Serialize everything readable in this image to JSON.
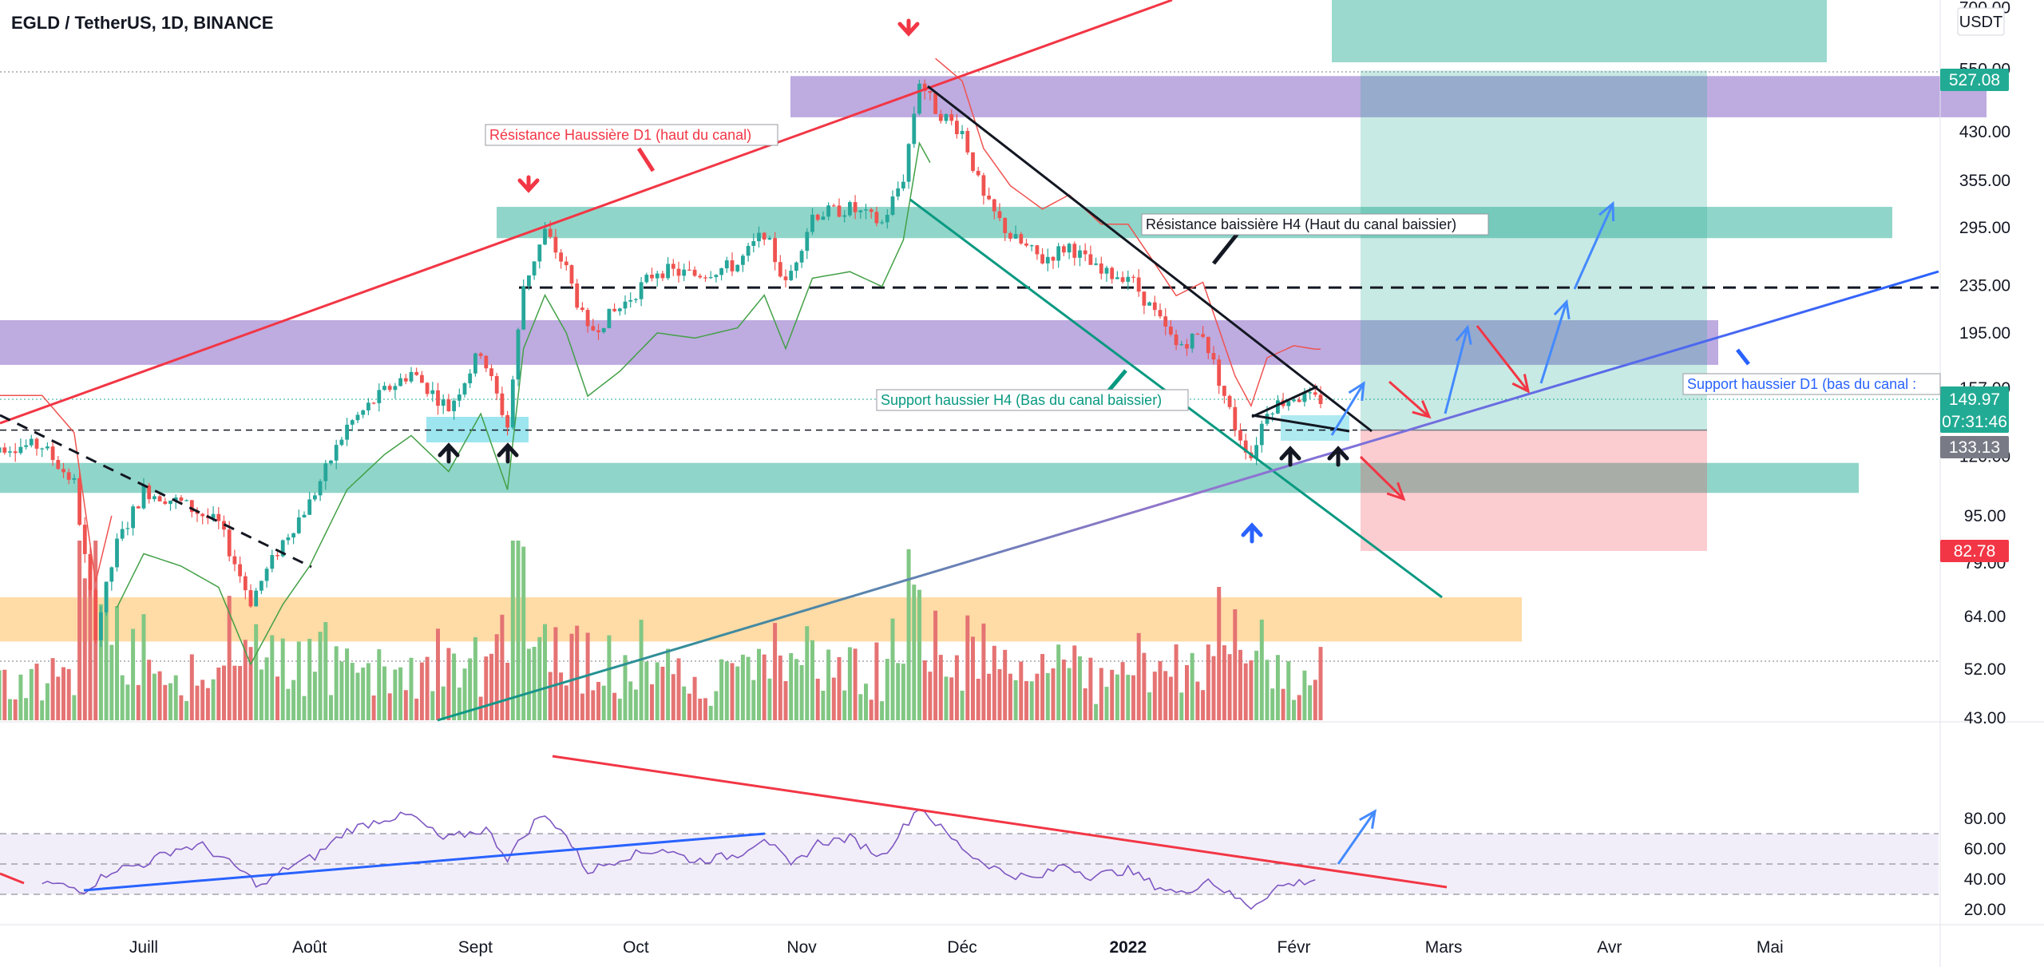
{
  "header": {
    "title": "EGLD / TetherUS, 1D, BINANCE",
    "currency": "USDT"
  },
  "chart_data": [
    {
      "type": "candlestick",
      "title": "EGLD / TetherUS, 1D, BINANCE",
      "scale": "log",
      "ylim": [
        43,
        700
      ],
      "y_ticks": [
        "700.00",
        "550.00",
        "430.00",
        "355.00",
        "295.00",
        "235.00",
        "195.00",
        "157.00",
        "120.00",
        "95.00",
        "79.00",
        "64.00",
        "52.00",
        "43.00"
      ],
      "y_tick_values": [
        700,
        550,
        430,
        355,
        295,
        235,
        195,
        157,
        120,
        95,
        79,
        64,
        52,
        43
      ],
      "x_ticks": [
        "Juill",
        "Août",
        "Sept",
        "Oct",
        "Nov",
        "Déc",
        "2022",
        "Févr",
        "Mars",
        "Avr",
        "Mai"
      ],
      "x_tick_dates": [
        "2021-07-01",
        "2021-08-01",
        "2021-09-01",
        "2021-10-01",
        "2021-11-01",
        "2021-12-01",
        "2022-01-01",
        "2022-02-01",
        "2022-03-01",
        "2022-04-01",
        "2022-05-01"
      ],
      "price_path": [
        {
          "date": "2021-06-12",
          "price": 125
        },
        {
          "date": "2021-06-18",
          "price": 108
        },
        {
          "date": "2021-06-22",
          "price": 60
        },
        {
          "date": "2021-06-26",
          "price": 85
        },
        {
          "date": "2021-07-01",
          "price": 105
        },
        {
          "date": "2021-07-08",
          "price": 100
        },
        {
          "date": "2021-07-15",
          "price": 92
        },
        {
          "date": "2021-07-21",
          "price": 68
        },
        {
          "date": "2021-07-27",
          "price": 86
        },
        {
          "date": "2021-08-01",
          "price": 100
        },
        {
          "date": "2021-08-08",
          "price": 135
        },
        {
          "date": "2021-08-15",
          "price": 155
        },
        {
          "date": "2021-08-20",
          "price": 167
        },
        {
          "date": "2021-08-27",
          "price": 145
        },
        {
          "date": "2021-09-02",
          "price": 182
        },
        {
          "date": "2021-09-07",
          "price": 135
        },
        {
          "date": "2021-09-10",
          "price": 235
        },
        {
          "date": "2021-09-14",
          "price": 290
        },
        {
          "date": "2021-09-18",
          "price": 250
        },
        {
          "date": "2021-09-22",
          "price": 195
        },
        {
          "date": "2021-09-28",
          "price": 215
        },
        {
          "date": "2021-10-05",
          "price": 250
        },
        {
          "date": "2021-10-12",
          "price": 245
        },
        {
          "date": "2021-10-20",
          "price": 255
        },
        {
          "date": "2021-10-25",
          "price": 290
        },
        {
          "date": "2021-10-29",
          "price": 235
        },
        {
          "date": "2021-11-03",
          "price": 310
        },
        {
          "date": "2021-11-10",
          "price": 318
        },
        {
          "date": "2021-11-16",
          "price": 300
        },
        {
          "date": "2021-11-20",
          "price": 360
        },
        {
          "date": "2021-11-23",
          "price": 527
        },
        {
          "date": "2021-11-26",
          "price": 470
        },
        {
          "date": "2021-12-01",
          "price": 430
        },
        {
          "date": "2021-12-05",
          "price": 330
        },
        {
          "date": "2021-12-10",
          "price": 285
        },
        {
          "date": "2021-12-16",
          "price": 260
        },
        {
          "date": "2021-12-21",
          "price": 275
        },
        {
          "date": "2021-12-27",
          "price": 245
        },
        {
          "date": "2022-01-01",
          "price": 245
        },
        {
          "date": "2022-01-06",
          "price": 210
        },
        {
          "date": "2022-01-10",
          "price": 185
        },
        {
          "date": "2022-01-15",
          "price": 195
        },
        {
          "date": "2022-01-21",
          "price": 135
        },
        {
          "date": "2022-01-24",
          "price": 120
        },
        {
          "date": "2022-01-27",
          "price": 145
        },
        {
          "date": "2022-02-01",
          "price": 152
        },
        {
          "date": "2022-02-05",
          "price": 149.97
        }
      ],
      "price_labels": [
        {
          "text": "527.08",
          "price": 527.08,
          "color": "#22ab94"
        },
        {
          "text": "149.97",
          "price": 149.97,
          "color": "#22ab94"
        },
        {
          "text": "07:31:46",
          "color": "#22ab94"
        },
        {
          "text": "133.13",
          "price": 133.13,
          "color": "#787b86"
        },
        {
          "text": "82.78",
          "price": 82.78,
          "color": "#f23645"
        }
      ],
      "annotations": [
        {
          "text": "Résistance Haussière D1 (haut du canal)",
          "color": "#f23645"
        },
        {
          "text": "Résistance baissière H4 (Haut du canal baissier)",
          "color": "#131722"
        },
        {
          "text": "Support haussier H4 (Bas du canal baissier)",
          "color": "#089981"
        },
        {
          "text": "Support haussier D1 (bas du canal :",
          "color": "#2962ff"
        }
      ],
      "zones": [
        {
          "name": "purple-resistance-high",
          "color": "#7e57c2",
          "low": 455,
          "high": 535
        },
        {
          "name": "purple-zone-mid",
          "color": "#7e57c2",
          "low": 172,
          "high": 205
        },
        {
          "name": "teal-zone-upper",
          "color": "#22ab94",
          "low": 283,
          "high": 320
        },
        {
          "name": "teal-zone-lower",
          "color": "#22ab94",
          "low": 104,
          "high": 117
        },
        {
          "name": "orange-zone",
          "color": "#ffb74d",
          "low": 58,
          "high": 69
        }
      ],
      "levels": [
        {
          "price": 233,
          "style": "dashed",
          "color": "#131722"
        },
        {
          "price": 133.13,
          "style": "dashed",
          "color": "#131722"
        }
      ],
      "position": {
        "entry": 133.13,
        "target": 550,
        "stop": 82.78,
        "target_color": "#22ab94",
        "stop_color": "#f23645"
      },
      "colors": {
        "up": "#26a69a",
        "down": "#ef5350",
        "volume_up": "#81c784",
        "volume_down": "#e57373"
      }
    },
    {
      "type": "line",
      "name": "RSI",
      "ylim": [
        15,
        90
      ],
      "y_ticks": [
        "80.00",
        "60.00",
        "40.00",
        "20.00"
      ],
      "y_tick_values": [
        80,
        60,
        40,
        20
      ],
      "band": [
        30,
        70
      ],
      "midline": 50,
      "color": "#7e57c2",
      "path": [
        {
          "date": "2021-06-12",
          "value": 38
        },
        {
          "date": "2021-06-20",
          "value": 33
        },
        {
          "date": "2021-06-25",
          "value": 46
        },
        {
          "date": "2021-07-01",
          "value": 50
        },
        {
          "date": "2021-07-07",
          "value": 60
        },
        {
          "date": "2021-07-12",
          "value": 62
        },
        {
          "date": "2021-07-19",
          "value": 46
        },
        {
          "date": "2021-07-23",
          "value": 35
        },
        {
          "date": "2021-07-28",
          "value": 48
        },
        {
          "date": "2021-08-02",
          "value": 55
        },
        {
          "date": "2021-08-08",
          "value": 72
        },
        {
          "date": "2021-08-15",
          "value": 80
        },
        {
          "date": "2021-08-20",
          "value": 82
        },
        {
          "date": "2021-08-26",
          "value": 66
        },
        {
          "date": "2021-09-03",
          "value": 73
        },
        {
          "date": "2021-09-07",
          "value": 54
        },
        {
          "date": "2021-09-13",
          "value": 82
        },
        {
          "date": "2021-09-17",
          "value": 74
        },
        {
          "date": "2021-09-22",
          "value": 45
        },
        {
          "date": "2021-09-29",
          "value": 55
        },
        {
          "date": "2021-10-06",
          "value": 60
        },
        {
          "date": "2021-10-12",
          "value": 52
        },
        {
          "date": "2021-10-20",
          "value": 56
        },
        {
          "date": "2021-10-25",
          "value": 68
        },
        {
          "date": "2021-10-30",
          "value": 48
        },
        {
          "date": "2021-11-04",
          "value": 64
        },
        {
          "date": "2021-11-10",
          "value": 67
        },
        {
          "date": "2021-11-16",
          "value": 55
        },
        {
          "date": "2021-11-23",
          "value": 88
        },
        {
          "date": "2021-11-28",
          "value": 70
        },
        {
          "date": "2021-12-03",
          "value": 55
        },
        {
          "date": "2021-12-09",
          "value": 44
        },
        {
          "date": "2021-12-15",
          "value": 40
        },
        {
          "date": "2021-12-20",
          "value": 50
        },
        {
          "date": "2021-12-25",
          "value": 42
        },
        {
          "date": "2022-01-01",
          "value": 46
        },
        {
          "date": "2022-01-06",
          "value": 36
        },
        {
          "date": "2022-01-11",
          "value": 30
        },
        {
          "date": "2022-01-16",
          "value": 40
        },
        {
          "date": "2022-01-20",
          "value": 30
        },
        {
          "date": "2022-01-24",
          "value": 22
        },
        {
          "date": "2022-01-29",
          "value": 35
        },
        {
          "date": "2022-02-05",
          "value": 40
        }
      ]
    }
  ]
}
